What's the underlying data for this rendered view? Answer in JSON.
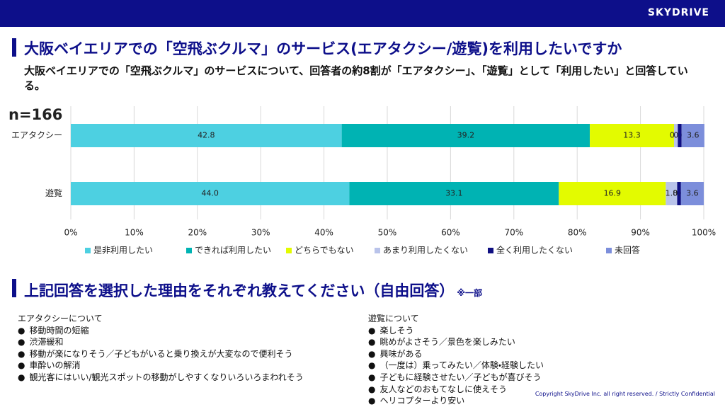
{
  "header": {
    "logo": "SKYDRIVE"
  },
  "title": "大阪ベイエリアでの「空飛ぶクルマ」のサービス(エアタクシー/遊覧)を利用したいですか",
  "subtitle": "大阪ベイエリアでの「空飛ぶクルマ」のサービスについて、回答者の約8割が「エアタクシー」、「遊覧」として「利用したい」と回答している。",
  "chart_data": {
    "type": "bar",
    "orientation": "horizontal",
    "stacked": true,
    "annotation": "n=166",
    "categories": [
      "エアタクシー",
      "遊覧"
    ],
    "series": [
      {
        "name": "是非利用したい",
        "color": "#4dd0e1",
        "values": [
          42.8,
          44.0
        ],
        "value_labels": [
          "42.8",
          "44.0"
        ]
      },
      {
        "name": "できれば利用したい",
        "color": "#00b3b3",
        "values": [
          39.2,
          33.1
        ],
        "value_labels": [
          "39.2",
          "33.1"
        ]
      },
      {
        "name": "どちらでもない",
        "color": "#e3fb00",
        "values": [
          13.3,
          16.9
        ],
        "value_labels": [
          "13.3",
          "16.9"
        ]
      },
      {
        "name": "あまり利用したくない",
        "color": "#b9c3ea",
        "values": [
          0.6,
          1.8
        ],
        "value_labels": [
          "0.6",
          "1.8"
        ]
      },
      {
        "name": "全く利用したくない",
        "color": "#0f0f82",
        "values": [
          0.6,
          0.6
        ],
        "value_labels": [
          "0.6",
          "0.6"
        ]
      },
      {
        "name": "未回答",
        "color": "#7c8edb",
        "values": [
          3.6,
          3.6
        ],
        "value_labels": [
          "3.6",
          "3.6"
        ]
      }
    ],
    "xlim": [
      0,
      100
    ],
    "xticks": [
      {
        "value": 0,
        "label": "0%"
      },
      {
        "value": 10,
        "label": "10%"
      },
      {
        "value": 20,
        "label": "20%"
      },
      {
        "value": 30,
        "label": "30%"
      },
      {
        "value": 40,
        "label": "40%"
      },
      {
        "value": 50,
        "label": "50%"
      },
      {
        "value": 60,
        "label": "60%"
      },
      {
        "value": 70,
        "label": "70%"
      },
      {
        "value": 80,
        "label": "80%"
      },
      {
        "value": 90,
        "label": "90%"
      },
      {
        "value": 100,
        "label": "100%"
      }
    ],
    "grid": true,
    "legend": "bottom"
  },
  "section2": {
    "title": "上記回答を選択した理由をそれぞれ教えてください（自由回答）",
    "note": "※一部",
    "columns": [
      {
        "heading": "エアタクシーについて",
        "items": [
          "移動時間の短縮",
          "渋滞緩和",
          "移動が楽になりそう／子どもがいると乗り換えが大変なので便利そう",
          "車酔いの解消",
          "観光客にはいい/観光スポットの移動がしやすくなりいろいろまわれそう"
        ]
      },
      {
        "heading": "遊覧について",
        "items": [
          "楽しそう",
          "眺めがよさそう／景色を楽しみたい",
          "興味がある",
          "（一度は）乗ってみたい／体験・経験したい",
          "子どもに経験させたい／子どもが喜びそう",
          "友人などのおもてなしに使えそう",
          "ヘリコプターより安い"
        ]
      }
    ]
  },
  "footer": "Copyright SkyDrive Inc. all right reserved. / Strictly Confidential"
}
